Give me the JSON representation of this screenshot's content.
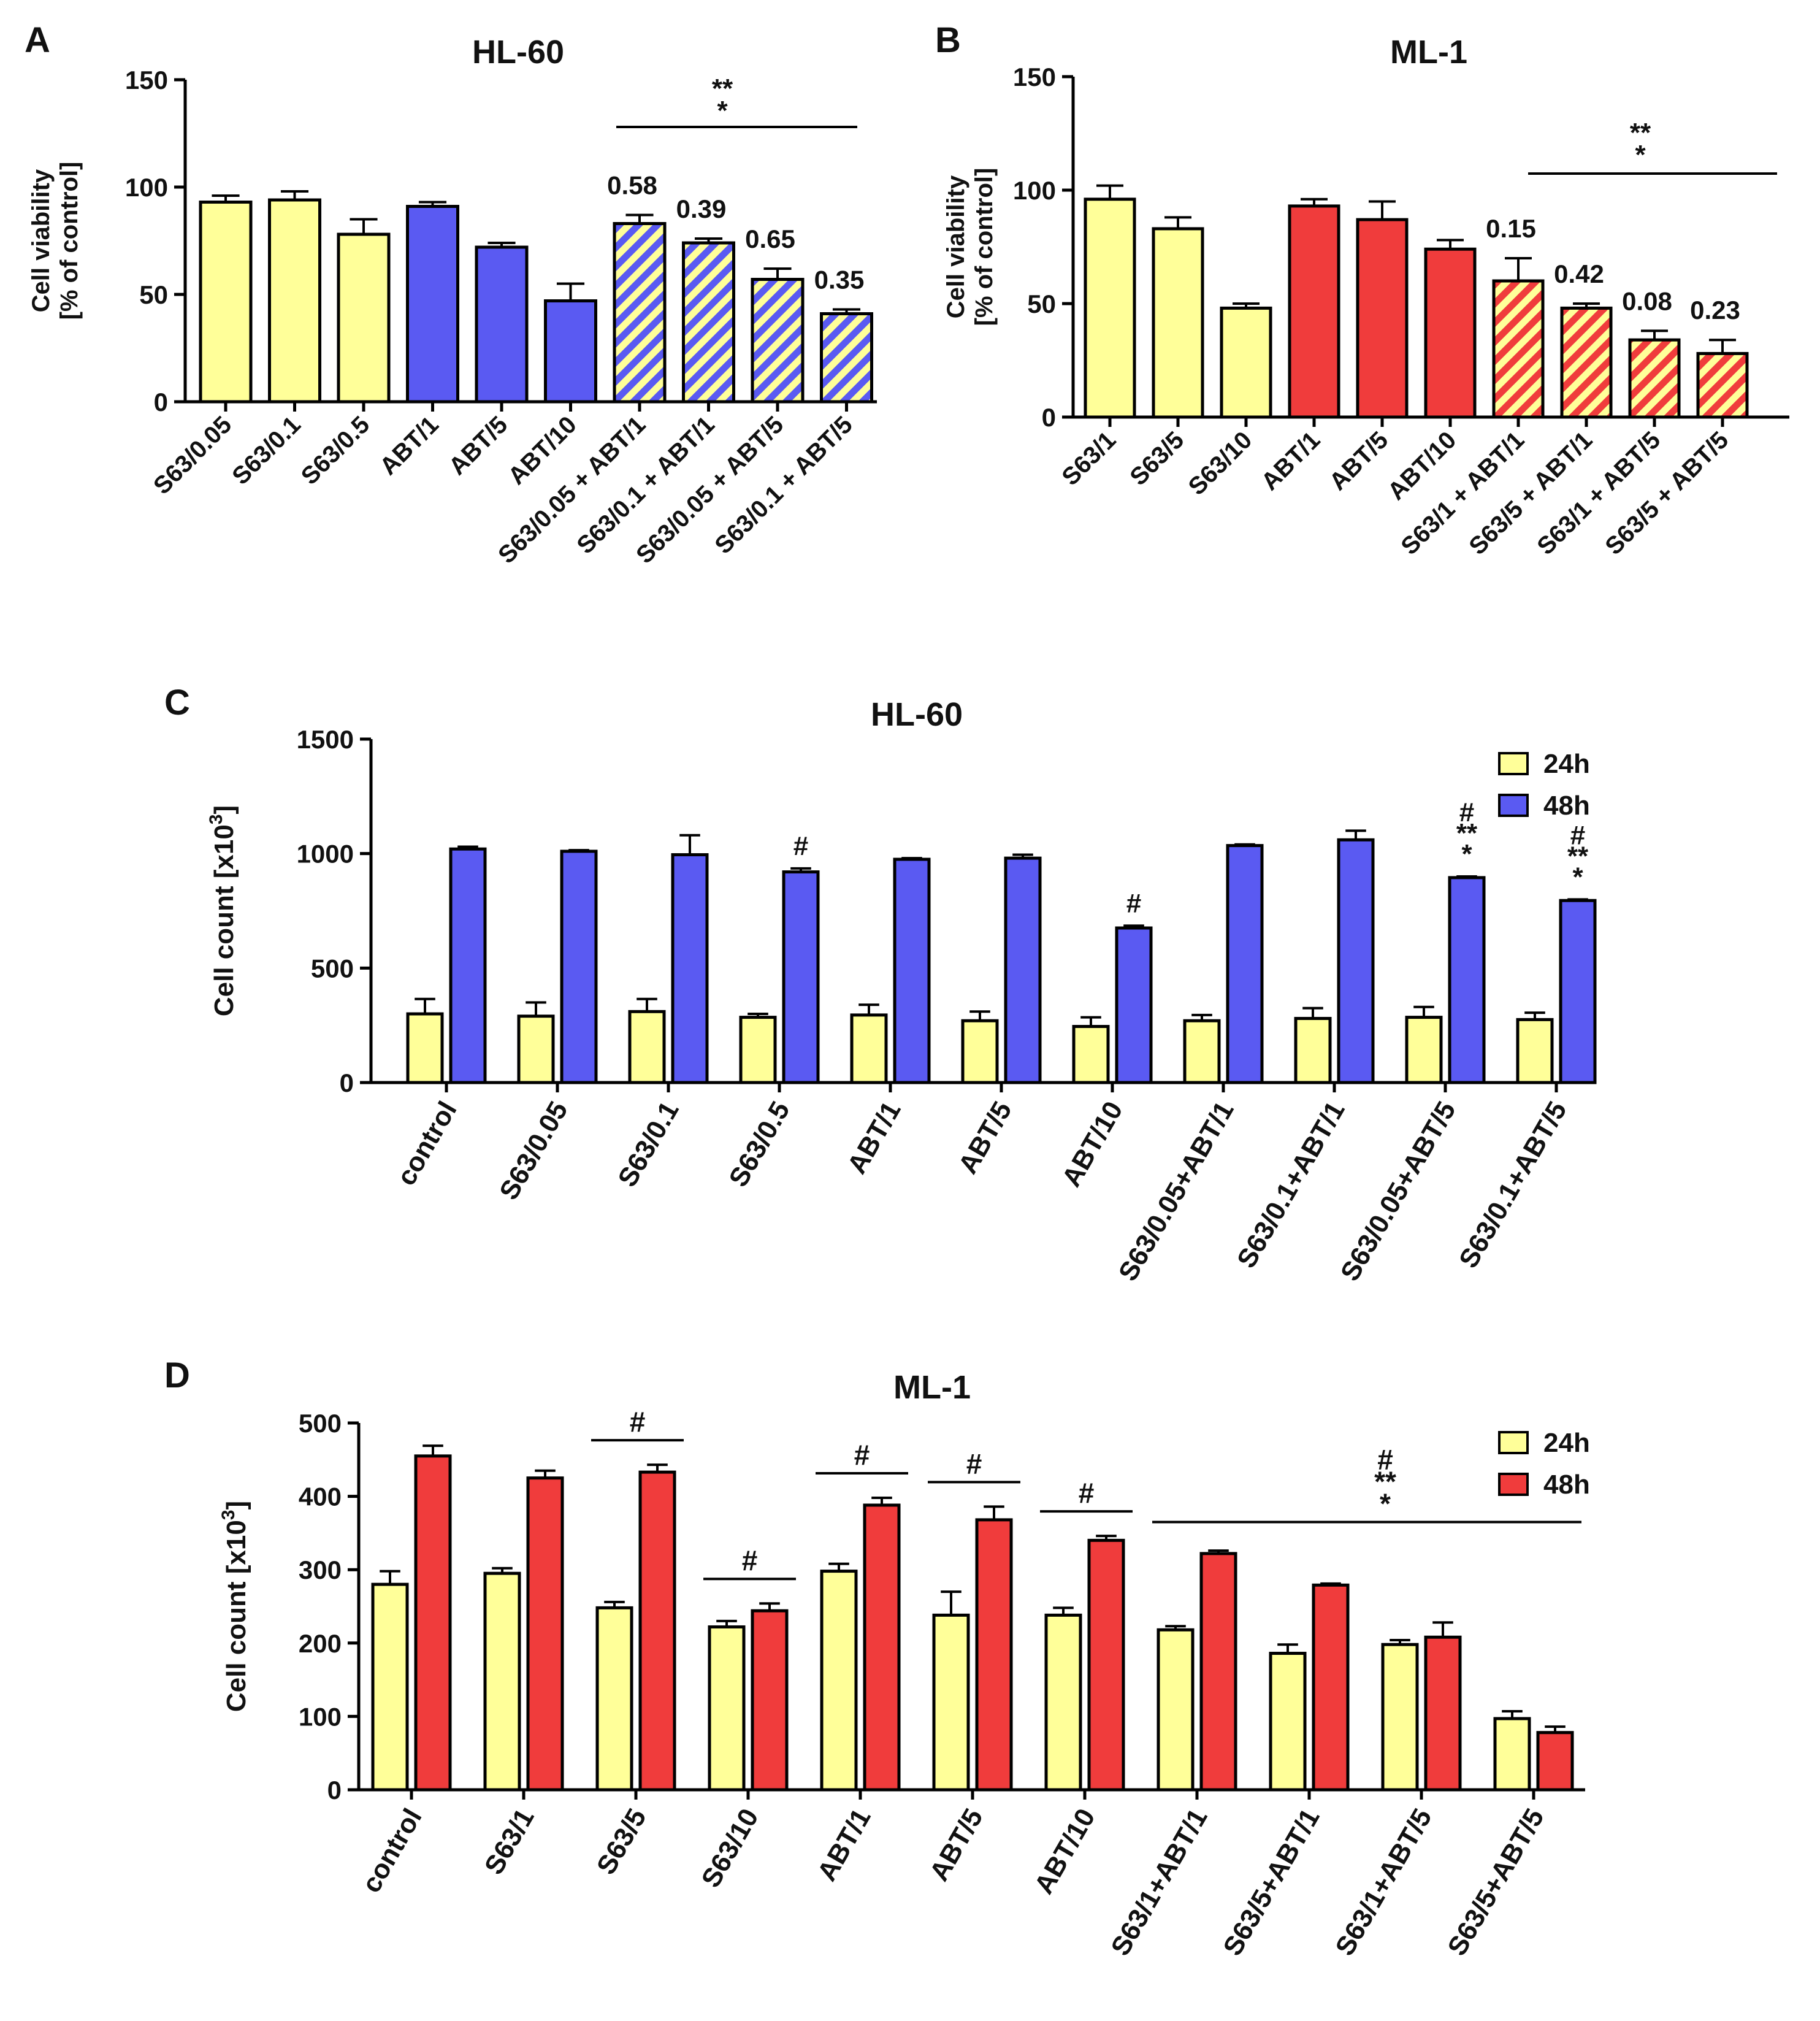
{
  "colors": {
    "yellow": "#FFFF99",
    "blue": "#5A5AF2",
    "red": "#F03C3C",
    "outline": "#000000"
  },
  "chart_data": [
    {
      "panel": "A",
      "type": "bar",
      "title": "HL-60",
      "ylabel_line1": "Cell viability",
      "ylabel_line2": "[% of control]",
      "ylim": [
        0,
        150
      ],
      "yticks": [
        "0",
        "50",
        "100",
        "150"
      ],
      "categories": [
        "S63/0.05",
        "S63/0.1",
        "S63/0.5",
        "ABT/1",
        "ABT/5",
        "ABT/10",
        "S63/0.05 + ABT/1",
        "S63/0.1 + ABT/1",
        "S63/0.05 + ABT/5",
        "S63/0.1 + ABT/5"
      ],
      "values": [
        93,
        94,
        78,
        91,
        72,
        47,
        83,
        74,
        57,
        41
      ],
      "errors": [
        3,
        4,
        7,
        2,
        2,
        8,
        4,
        2,
        5,
        2
      ],
      "fills": [
        "yellow",
        "yellow",
        "yellow",
        "blue",
        "blue",
        "blue",
        "hatch",
        "hatch",
        "hatch",
        "hatch"
      ],
      "bar_labels": [
        "",
        "",
        "",
        "",
        "",
        "",
        "0.58",
        "0.39",
        "0.65",
        "0.35"
      ],
      "significance": {
        "from": 6,
        "to": 9,
        "label": "**\n*"
      }
    },
    {
      "panel": "B",
      "type": "bar",
      "title": "ML-1",
      "ylabel_line1": "Cell viability",
      "ylabel_line2": "[% of control]",
      "ylim": [
        0,
        150
      ],
      "yticks": [
        "0",
        "50",
        "100",
        "150"
      ],
      "categories": [
        "S63/1",
        "S63/5",
        "S63/10",
        "ABT/1",
        "ABT/5",
        "ABT/10",
        "S63/1 + ABT/1",
        "S63/5 + ABT/1",
        "S63/1 + ABT/5",
        "S63/5 + ABT/5"
      ],
      "values": [
        96,
        83,
        48,
        93,
        87,
        74,
        60,
        48,
        34,
        28
      ],
      "errors": [
        6,
        5,
        2,
        3,
        8,
        4,
        10,
        2,
        4,
        6
      ],
      "fills": [
        "yellow",
        "yellow",
        "yellow",
        "red",
        "red",
        "red",
        "hatch",
        "hatch",
        "hatch",
        "hatch"
      ],
      "bar_labels": [
        "",
        "",
        "",
        "",
        "",
        "",
        "0.15",
        "0.42",
        "0.08",
        "0.23"
      ],
      "significance": {
        "from": 6,
        "to": 9,
        "label": "**\n*"
      }
    },
    {
      "panel": "C",
      "type": "bar",
      "title": "HL-60",
      "ylabel": "Cell count [x10",
      "ylabel_sup": "3",
      "ylabel_close": "]",
      "ylim": [
        0,
        1500
      ],
      "yticks": [
        "0",
        "500",
        "1000",
        "1500"
      ],
      "categories": [
        "control",
        "S63/0.05",
        "S63/0.1",
        "S63/0.5",
        "ABT/1",
        "ABT/5",
        "ABT/10",
        "S63/0.05+ABT/1",
        "S63/0.1+ABT/1",
        "S63/0.05+ABT/5",
        "S63/0.1+ABT/5"
      ],
      "legend": [
        "24h",
        "48h"
      ],
      "series": [
        {
          "name": "24h",
          "color": "yellow",
          "values": [
            300,
            290,
            310,
            285,
            295,
            270,
            245,
            270,
            280,
            285,
            275
          ],
          "errors": [
            65,
            60,
            55,
            15,
            45,
            40,
            40,
            25,
            45,
            45,
            30
          ]
        },
        {
          "name": "48h",
          "color": "blue",
          "values": [
            1020,
            1010,
            995,
            920,
            975,
            980,
            675,
            1035,
            1060,
            895,
            795
          ],
          "errors": [
            10,
            5,
            85,
            15,
            5,
            15,
            10,
            5,
            40,
            5,
            5
          ]
        }
      ],
      "annotations": [
        "",
        "",
        "",
        "#",
        "",
        "",
        "#",
        "",
        "",
        "#\n**\n*",
        "#\n**\n*"
      ]
    },
    {
      "panel": "D",
      "type": "bar",
      "title": "ML-1",
      "ylabel": "Cell count [x10",
      "ylabel_sup": "3",
      "ylabel_close": "]",
      "ylim": [
        0,
        500
      ],
      "yticks": [
        "0",
        "100",
        "200",
        "300",
        "400",
        "500"
      ],
      "categories": [
        "control",
        "S63/1",
        "S63/5",
        "S63/10",
        "ABT/1",
        "ABT/5",
        "ABT/10",
        "S63/1+ABT/1",
        "S63/5+ABT/1",
        "S63/1+ABT/5",
        "S63/5+ABT/5"
      ],
      "legend": [
        "24h",
        "48h"
      ],
      "series": [
        {
          "name": "24h",
          "color": "yellow",
          "values": [
            280,
            295,
            248,
            222,
            298,
            238,
            238,
            218,
            186,
            198,
            97
          ],
          "errors": [
            18,
            7,
            8,
            8,
            10,
            32,
            10,
            5,
            12,
            6,
            10
          ]
        },
        {
          "name": "48h",
          "color": "red",
          "values": [
            455,
            425,
            433,
            244,
            388,
            368,
            340,
            322,
            279,
            208,
            78
          ]
        },
        "errors_note"
      ],
      "errors_48h": [
        14,
        10,
        10,
        10,
        10,
        18,
        6,
        4,
        2,
        20,
        8
      ],
      "group_marks": [
        {
          "from": 2,
          "to": 2,
          "label": "#"
        },
        {
          "from": 3,
          "to": 3,
          "label": "#"
        },
        {
          "from": 4,
          "to": 4,
          "label": "#"
        },
        {
          "from": 5,
          "to": 5,
          "label": "#"
        },
        {
          "from": 6,
          "to": 6,
          "label": "#"
        },
        {
          "from": 7,
          "to": 10,
          "label": "#\n**\n*"
        }
      ]
    }
  ]
}
